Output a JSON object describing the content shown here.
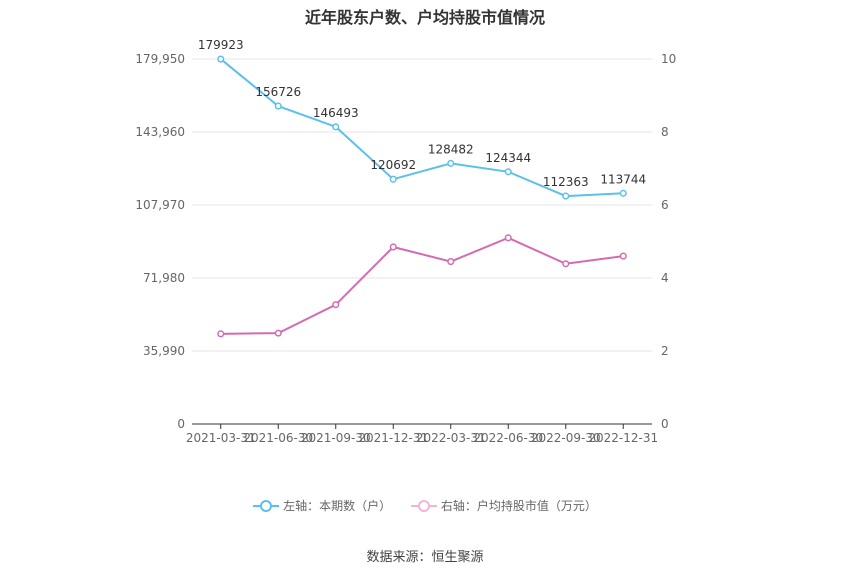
{
  "chart_data": {
    "type": "line",
    "title": "近年股东户数、户均持股市值情况",
    "categories": [
      "2021-03-31",
      "2021-06-30",
      "2021-09-30",
      "2021-12-31",
      "2022-03-31",
      "2022-06-30",
      "2022-09-30",
      "2022-12-31"
    ],
    "series": [
      {
        "name": "左轴：本期数（户）",
        "axis": "left",
        "color": "#5bc0eb",
        "values": [
          179923,
          156726,
          146493,
          120692,
          128482,
          124344,
          112363,
          113744
        ]
      },
      {
        "name": "右轴：户均持股市值（万元）",
        "axis": "right",
        "color": "#d36bb0",
        "values": [
          2.47,
          2.49,
          3.27,
          4.85,
          4.45,
          5.1,
          4.39,
          4.6
        ]
      }
    ],
    "y_left": {
      "min": 0,
      "max": 179950,
      "ticks": [
        "0",
        "35,990",
        "71,980",
        "107,970",
        "143,960",
        "179,950"
      ]
    },
    "y_right": {
      "min": 0,
      "max": 10,
      "ticks": [
        "0",
        "2",
        "4",
        "6",
        "8",
        "10"
      ]
    },
    "grid": true,
    "legend_position": "bottom"
  },
  "source_text": "数据来源：恒生聚源"
}
